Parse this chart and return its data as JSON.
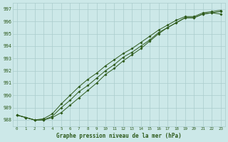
{
  "title": "Graphe pression niveau de la mer (hPa)",
  "x_ticks": [
    0,
    1,
    2,
    3,
    4,
    5,
    6,
    7,
    8,
    9,
    10,
    11,
    12,
    13,
    14,
    15,
    16,
    17,
    18,
    19,
    20,
    21,
    22,
    23
  ],
  "ylim": [
    987.5,
    997.5
  ],
  "yticks": [
    988,
    989,
    990,
    991,
    992,
    993,
    994,
    995,
    996,
    997
  ],
  "bg_color": "#cce8e8",
  "grid_color": "#aacccc",
  "line_color": "#2d5a1b",
  "line1": [
    988.4,
    988.2,
    988.0,
    988.0,
    988.2,
    988.6,
    989.2,
    989.8,
    990.4,
    991.0,
    991.7,
    992.2,
    992.8,
    993.3,
    993.8,
    994.4,
    995.0,
    995.5,
    995.9,
    996.3,
    996.3,
    996.6,
    996.7,
    996.6
  ],
  "line2": [
    988.4,
    988.2,
    988.0,
    988.1,
    988.5,
    989.3,
    990.0,
    990.7,
    991.3,
    991.8,
    992.4,
    992.9,
    993.4,
    993.8,
    994.3,
    994.8,
    995.3,
    995.7,
    996.1,
    996.4,
    996.4,
    996.7,
    996.8,
    996.9
  ],
  "line3": [
    988.4,
    988.2,
    988.0,
    988.0,
    988.3,
    989.0,
    989.6,
    990.3,
    990.8,
    991.4,
    992.0,
    992.5,
    993.1,
    993.5,
    994.0,
    994.5,
    995.1,
    995.5,
    995.9,
    996.3,
    996.3,
    996.6,
    996.7,
    996.8
  ]
}
